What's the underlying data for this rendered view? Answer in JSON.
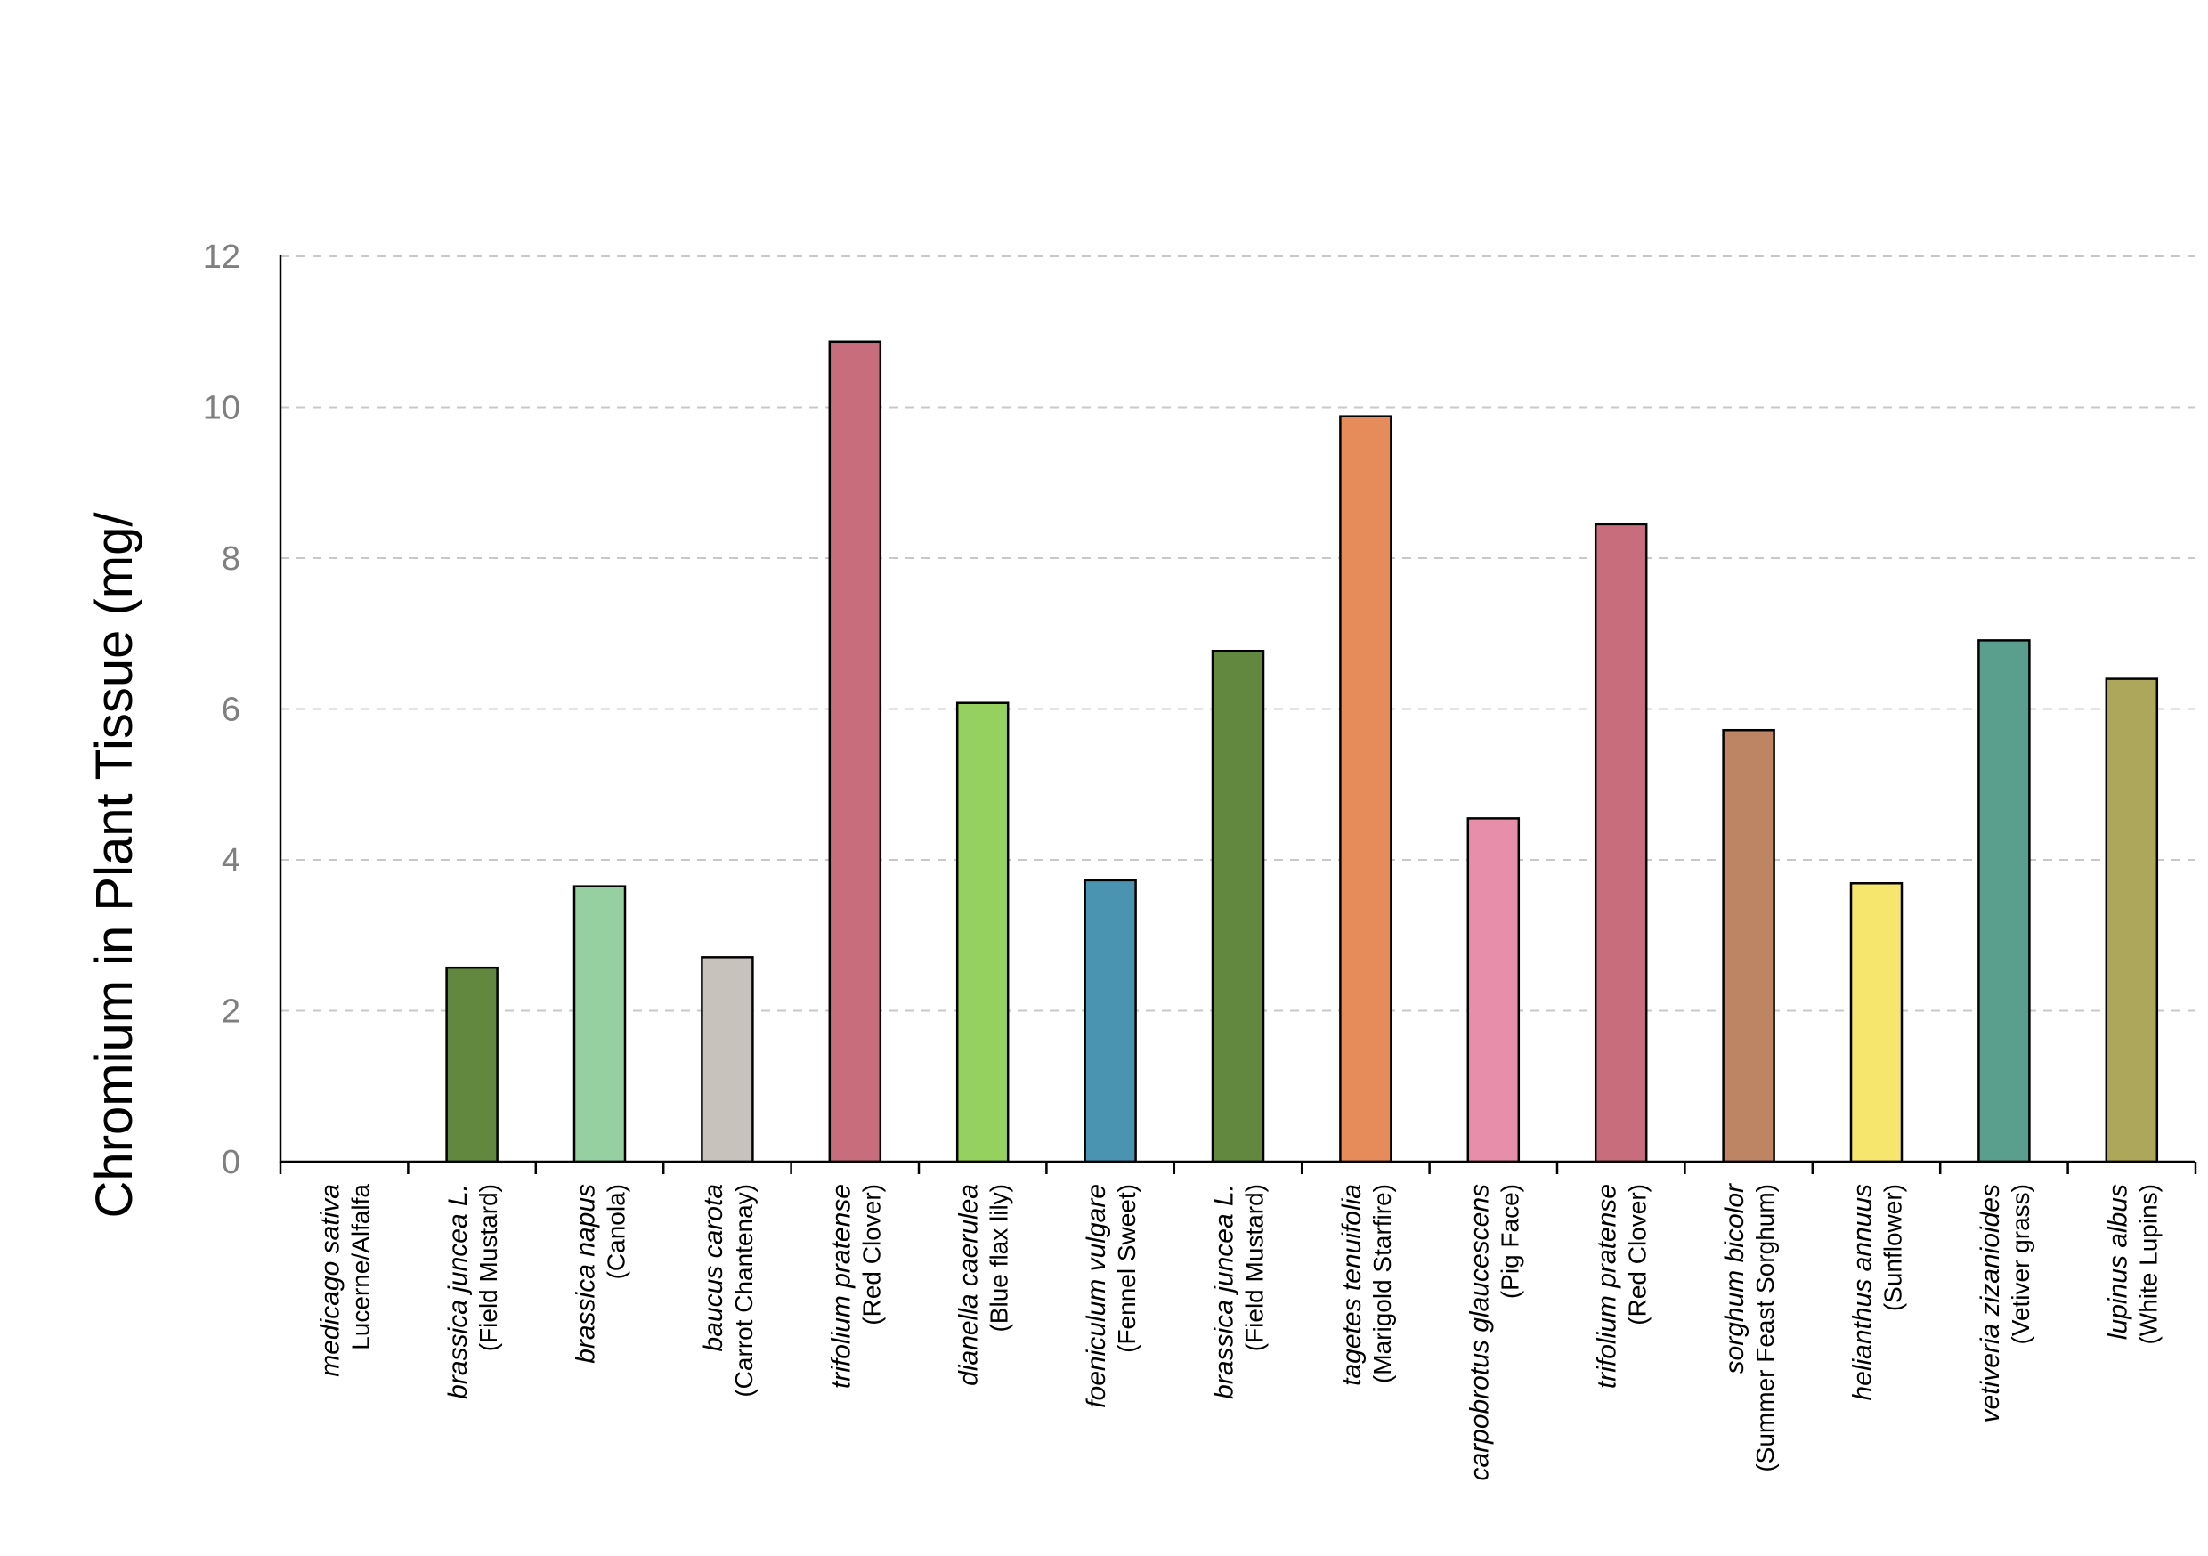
{
  "chart_data": {
    "type": "bar",
    "ylabel": "Chromium in Plant Tissue (mg/",
    "xlabel": "",
    "ylim": [
      0,
      12
    ],
    "yticks": [
      0,
      2,
      4,
      6,
      8,
      10,
      12
    ],
    "grid": true,
    "legend": "none",
    "categories": [
      {
        "scientific": "medicago sativa",
        "common": "Lucerne/Alfalfa"
      },
      {
        "scientific": "brassica juncea L.",
        "common": "(Field Mustard)"
      },
      {
        "scientific": "brassica napus",
        "common": "(Canola)"
      },
      {
        "scientific": "baucus carota",
        "common": "(Carrot Chantenay)"
      },
      {
        "scientific": "trifolium pratense",
        "common": "(Red Clover)"
      },
      {
        "scientific": "dianella caerulea",
        "common": "(Blue flax lily)"
      },
      {
        "scientific": "foeniculum vulgare",
        "common": "(Fennel Sweet)"
      },
      {
        "scientific": "brassica juncea L.",
        "common": "(Field Mustard)"
      },
      {
        "scientific": "tagetes tenuifolia",
        "common": "(Marigold Starfire)"
      },
      {
        "scientific": "carpobrotus glaucescens",
        "common": "(Pig Face)"
      },
      {
        "scientific": "trifolium pratense",
        "common": "(Red Clover)"
      },
      {
        "scientific": "sorghum bicolor",
        "common": "(Summer Feast Sorghum)"
      },
      {
        "scientific": "helianthus annuus",
        "common": "(Sunflower)"
      },
      {
        "scientific": "vetiveria zizanioides",
        "common": "(Vetiver grass)"
      },
      {
        "scientific": "lupinus albus",
        "common": "(White Lupins)"
      }
    ],
    "values": [
      0,
      2.57,
      3.65,
      2.71,
      10.87,
      6.08,
      3.73,
      6.77,
      9.88,
      4.55,
      8.45,
      5.72,
      3.69,
      6.91,
      6.4
    ],
    "colors": [
      "#ffffff",
      "#62873e",
      "#96cfa0",
      "#c7c3bc",
      "#c86d7b",
      "#95d15f",
      "#4b94b1",
      "#62873e",
      "#e58c5a",
      "#e78faa",
      "#c86d7b",
      "#bd8564",
      "#f6e66d",
      "#5a9e8d",
      "#aca75a"
    ]
  }
}
